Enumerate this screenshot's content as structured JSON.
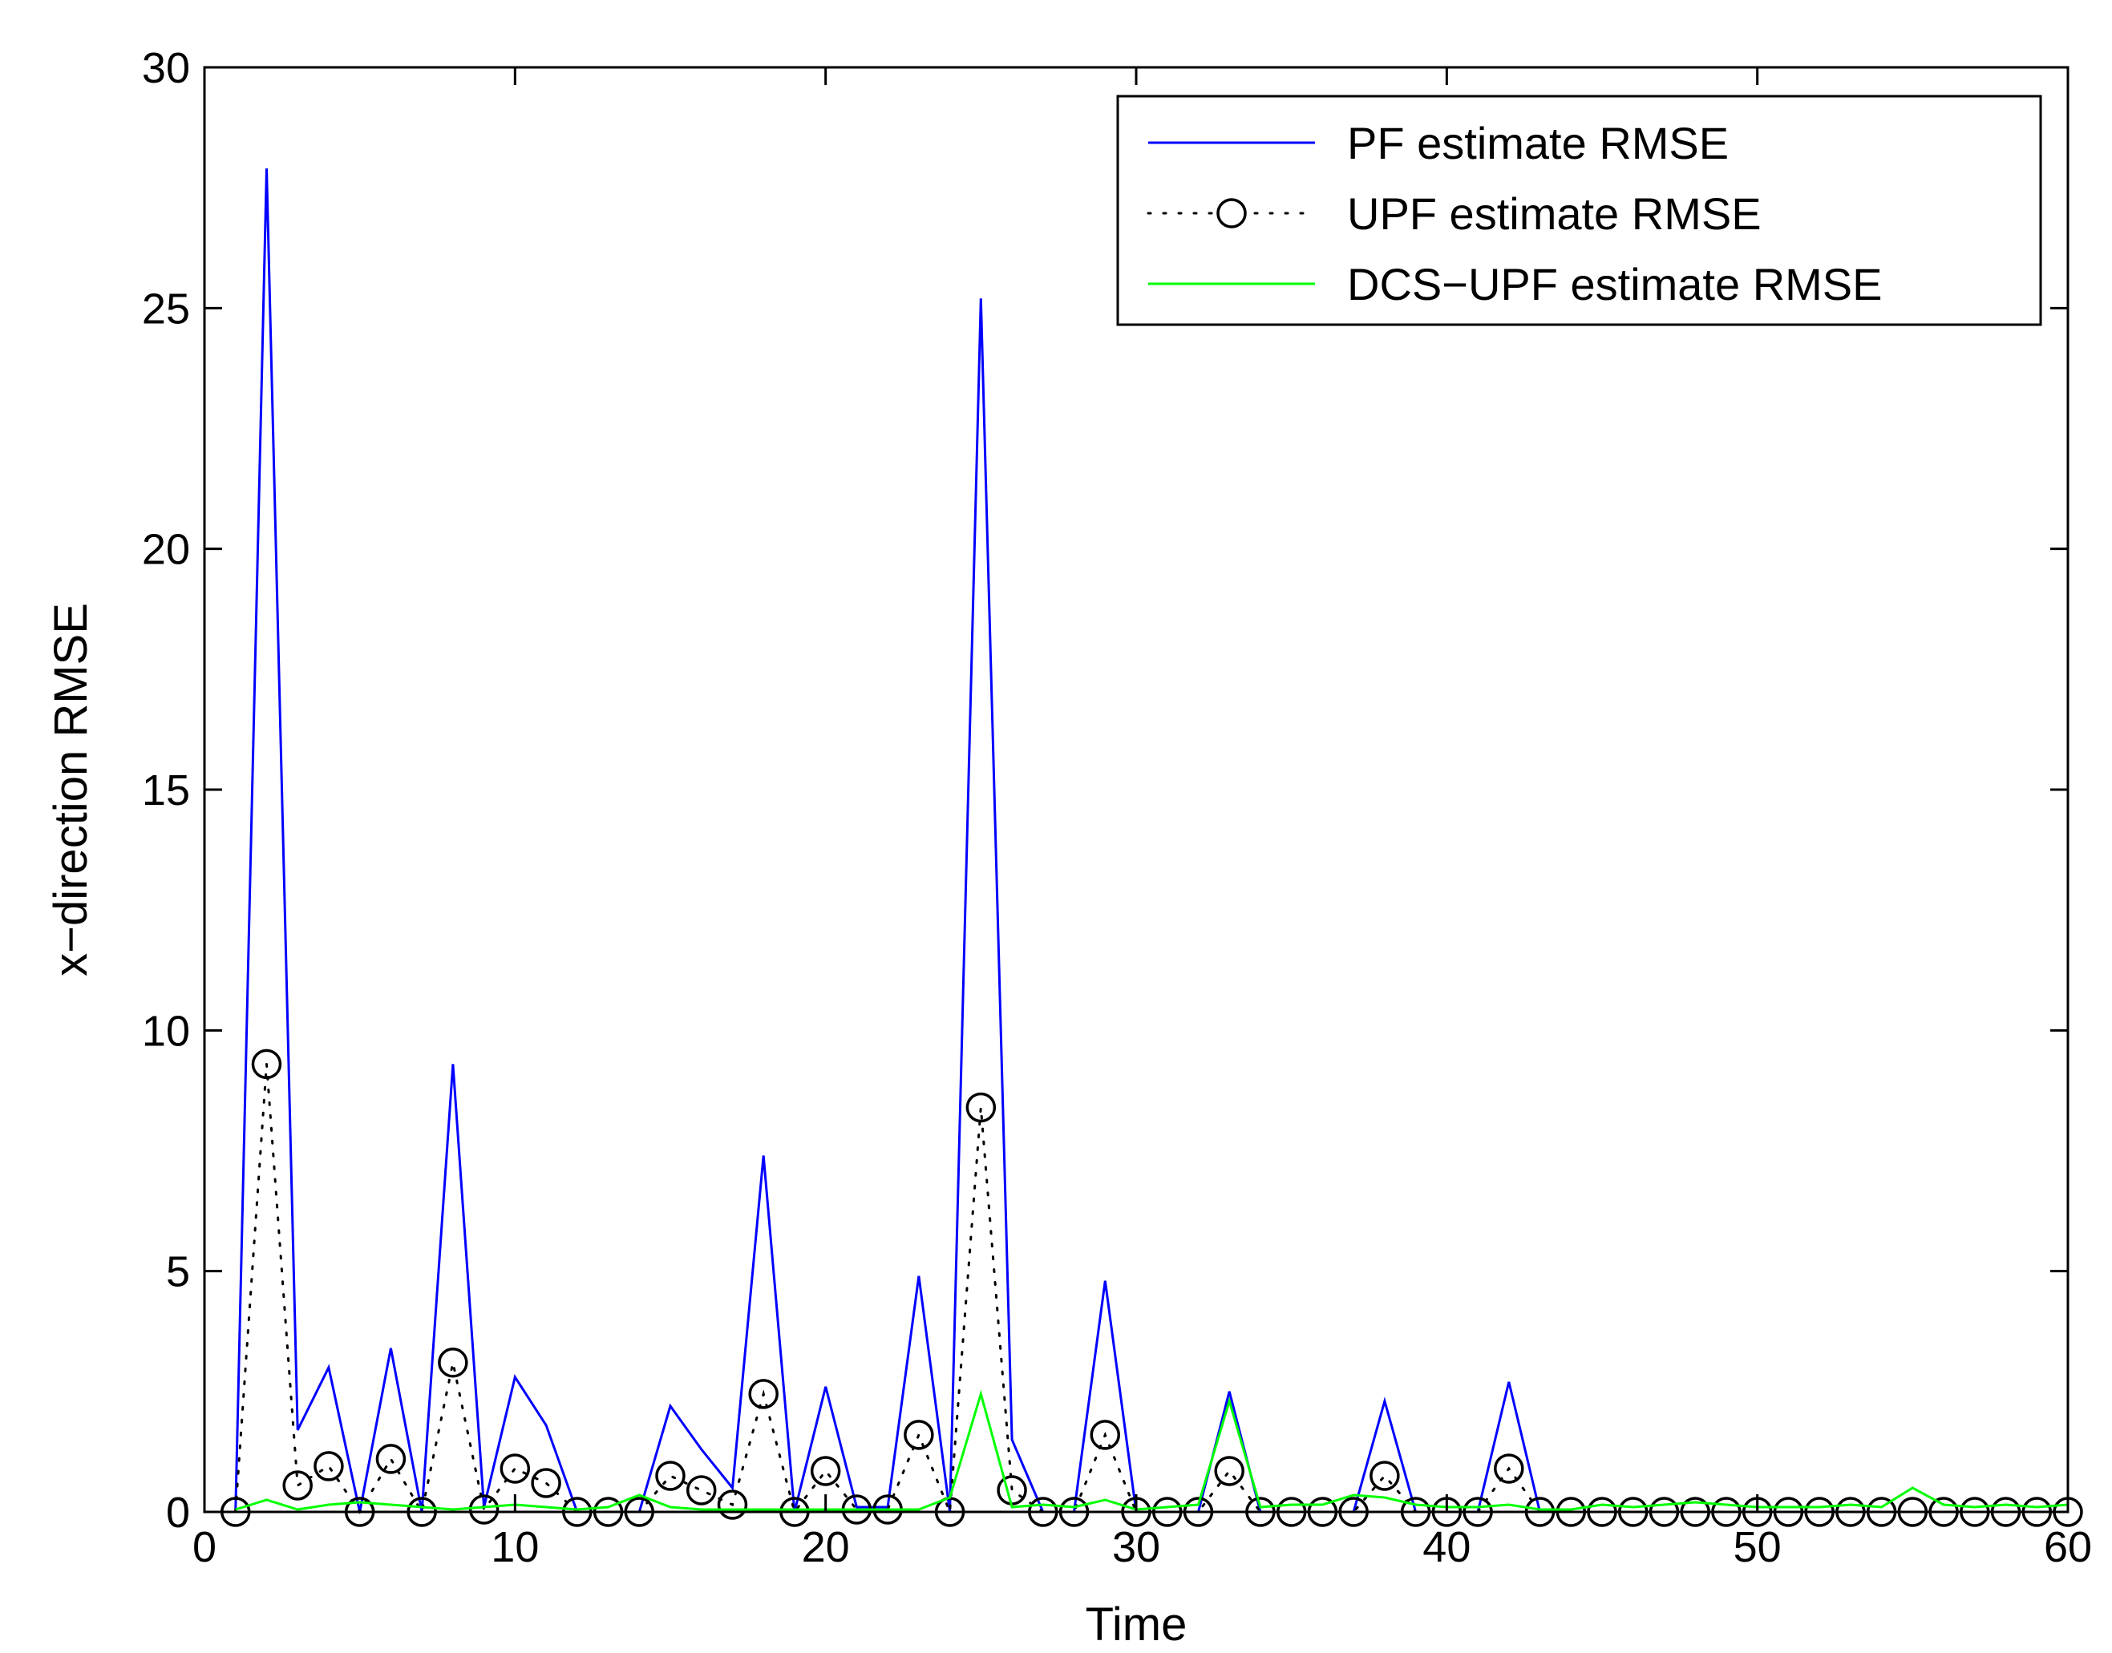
{
  "chart_data": {
    "type": "line",
    "xlabel": "Time",
    "ylabel": "x−direction RMSE",
    "xlim": [
      0,
      60
    ],
    "ylim": [
      0,
      30
    ],
    "xticks": [
      0,
      10,
      20,
      30,
      40,
      50,
      60
    ],
    "yticks": [
      0,
      5,
      10,
      15,
      20,
      25,
      30
    ],
    "legend_position": "top-right",
    "grid": false,
    "x": [
      1,
      2,
      3,
      4,
      5,
      6,
      7,
      8,
      9,
      10,
      11,
      12,
      13,
      14,
      15,
      16,
      17,
      18,
      19,
      20,
      21,
      22,
      23,
      24,
      25,
      26,
      27,
      28,
      29,
      30,
      31,
      32,
      33,
      34,
      35,
      36,
      37,
      38,
      39,
      40,
      41,
      42,
      43,
      44,
      45,
      46,
      47,
      48,
      49,
      50,
      51,
      52,
      53,
      54,
      55,
      56,
      57,
      58,
      59,
      60
    ],
    "series": [
      {
        "name": "PF estimate RMSE",
        "color": "#0000ff",
        "style": "solid",
        "values": [
          0,
          27.9,
          1.7,
          3.0,
          0,
          3.4,
          0,
          9.3,
          0.1,
          2.8,
          1.8,
          0,
          0,
          0,
          2.2,
          1.3,
          0.5,
          7.4,
          0,
          2.6,
          0.1,
          0.1,
          4.9,
          0,
          25.2,
          1.5,
          0,
          0,
          4.8,
          0,
          0,
          0,
          2.5,
          0,
          0,
          0,
          0,
          2.3,
          0,
          0,
          0,
          2.7,
          0,
          0,
          0,
          0,
          0,
          0,
          0,
          0,
          0,
          0,
          0,
          0,
          0,
          0,
          0,
          0,
          0,
          0
        ]
      },
      {
        "name": "UPF estimate RMSE",
        "color": "#000000",
        "style": "dotted-circle",
        "values": [
          0,
          9.3,
          0.55,
          0.95,
          0,
          1.1,
          0,
          3.1,
          0.05,
          0.9,
          0.6,
          0,
          0,
          0,
          0.75,
          0.45,
          0.15,
          2.45,
          0,
          0.85,
          0.05,
          0.05,
          1.6,
          0,
          8.4,
          0.45,
          0,
          0,
          1.6,
          0,
          0,
          0,
          0.85,
          0,
          0,
          0,
          0,
          0.75,
          0,
          0,
          0,
          0.9,
          0,
          0,
          0,
          0,
          0,
          0,
          0,
          0,
          0,
          0,
          0,
          0,
          0,
          0,
          0,
          0,
          0,
          0
        ]
      },
      {
        "name": "DCS−UPF estimate RMSE",
        "color": "#00ff00",
        "style": "solid",
        "values": [
          0.05,
          0.25,
          0.05,
          0.15,
          0.2,
          0.15,
          0.1,
          0.05,
          0.1,
          0.15,
          0.1,
          0.05,
          0.1,
          0.35,
          0.1,
          0.05,
          0.05,
          0.05,
          0.05,
          0.05,
          0.05,
          0.05,
          0.05,
          0.3,
          2.45,
          0.1,
          0.15,
          0.1,
          0.25,
          0.05,
          0.1,
          0.15,
          2.3,
          0.1,
          0.15,
          0.15,
          0.35,
          0.3,
          0.15,
          0.1,
          0.1,
          0.15,
          0.05,
          0.05,
          0.15,
          0.1,
          0.15,
          0.2,
          0.15,
          0.1,
          0.1,
          0.1,
          0.15,
          0.1,
          0.5,
          0.15,
          0.1,
          0.15,
          0.1,
          0.15
        ]
      }
    ]
  }
}
